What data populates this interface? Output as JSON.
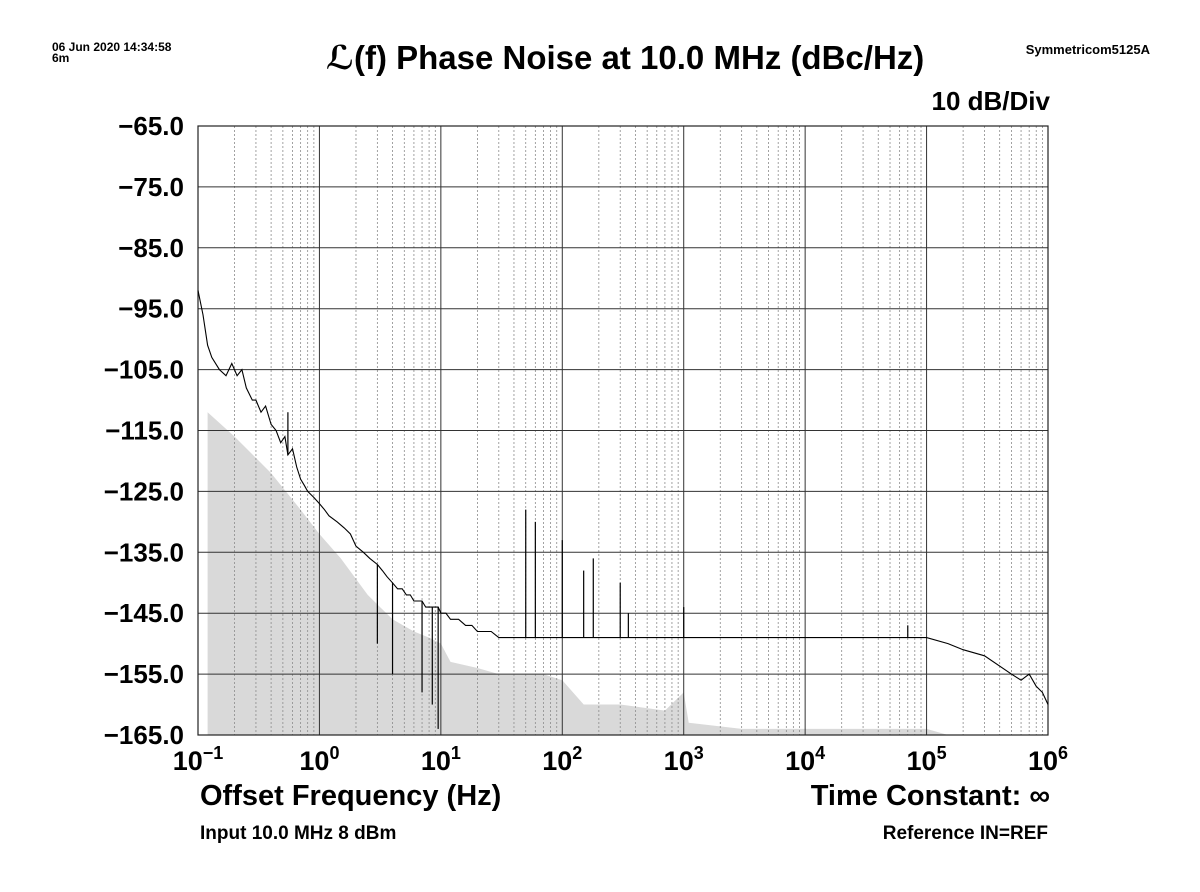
{
  "header": {
    "timestamp_line1": "06 Jun 2020 14:34:58",
    "timestamp_line2": "6m",
    "instrument": "Symmetricom5125A",
    "title": "ℒ(f) Phase Noise at 10.0 MHz (dBc/Hz)",
    "scale_label": "10 dB/Div"
  },
  "footer": {
    "x_axis_label": "Offset Frequency (Hz)",
    "time_constant": "Time Constant: ∞",
    "input": "Input 10.0 MHz 8 dBm",
    "reference": "Reference IN=REF"
  },
  "chart_data": {
    "type": "line",
    "title": "ℒ(f) Phase Noise at 10.0 MHz (dBc/Hz)",
    "xlabel": "Offset Frequency (Hz)",
    "ylabel": "",
    "x_scale": "log",
    "xlim": [
      0.1,
      1000000
    ],
    "ylim": [
      -165,
      -65
    ],
    "grid": true,
    "y_tick_labels": [
      "−65.0",
      "−75.0",
      "−85.0",
      "−95.0",
      "−105.0",
      "−115.0",
      "−125.0",
      "−135.0",
      "−145.0",
      "−155.0",
      "−165.0"
    ],
    "x_tick_labels": [
      {
        "base": "10",
        "exp": "−1"
      },
      {
        "base": "10",
        "exp": "0"
      },
      {
        "base": "10",
        "exp": "1"
      },
      {
        "base": "10",
        "exp": "2"
      },
      {
        "base": "10",
        "exp": "3"
      },
      {
        "base": "10",
        "exp": "4"
      },
      {
        "base": "10",
        "exp": "5"
      },
      {
        "base": "10",
        "exp": "6"
      }
    ],
    "colors": {
      "trace": "#000000",
      "floor_fill": "#d9d9d9",
      "grid_major": "#333333",
      "grid_minor": "#8c8c8c"
    },
    "series": [
      {
        "role": "phase-noise-trace",
        "x": [
          0.1,
          0.11,
          0.12,
          0.13,
          0.15,
          0.17,
          0.19,
          0.21,
          0.23,
          0.25,
          0.28,
          0.3,
          0.33,
          0.36,
          0.4,
          0.44,
          0.48,
          0.52,
          0.55,
          0.6,
          0.65,
          0.7,
          0.75,
          0.8,
          0.9,
          1.0,
          1.1,
          1.2,
          1.4,
          1.6,
          1.8,
          2.0,
          2.3,
          2.6,
          3.0,
          3.3,
          3.6,
          4.0,
          4.4,
          4.8,
          5.2,
          5.6,
          6.0,
          6.5,
          7.0,
          7.5,
          8.0,
          8.5,
          9.0,
          9.5,
          10,
          11,
          12,
          14,
          16,
          18,
          20,
          23,
          26,
          30,
          35,
          40,
          45,
          50,
          52,
          55,
          58,
          60,
          65,
          70,
          80,
          90,
          100,
          110,
          130,
          150,
          170,
          200,
          250,
          300,
          350,
          400,
          500,
          600,
          700,
          800,
          1000,
          1500,
          2000,
          3000,
          5000,
          7000,
          10000,
          20000,
          50000,
          70000,
          100000,
          150000,
          200000,
          300000,
          500000,
          600000,
          700000,
          800000,
          900000,
          1000000
        ],
        "y": [
          -92,
          -96,
          -101,
          -103,
          -105,
          -106,
          -104,
          -106,
          -105,
          -108,
          -110,
          -110,
          -112,
          -111,
          -114,
          -115,
          -117,
          -116,
          -119,
          -118,
          -121,
          -123,
          -124,
          -125,
          -126,
          -127,
          -128,
          -129,
          -130,
          -131,
          -132,
          -134,
          -135,
          -136,
          -137,
          -138,
          -139,
          -140,
          -141,
          -141,
          -142,
          -142,
          -143,
          -143,
          -143,
          -144,
          -144,
          -144,
          -144,
          -144,
          -145,
          -145,
          -146,
          -146,
          -147,
          -147,
          -148,
          -148,
          -148,
          -149,
          -149,
          -149,
          -149,
          -149,
          -149,
          -149,
          -149,
          -149,
          -149,
          -149,
          -149,
          -149,
          -149,
          -149,
          -149,
          -149,
          -149,
          -149,
          -149,
          -149,
          -149,
          -149,
          -149,
          -149,
          -149,
          -149,
          -149,
          -149,
          -149,
          -149,
          -149,
          -149,
          -149,
          -149,
          -149,
          -149,
          -149,
          -150,
          -151,
          -152,
          -155,
          -156,
          -155,
          -157,
          -158,
          -160
        ],
        "spikes": [
          {
            "x": 0.55,
            "y": -112
          },
          {
            "x": 3.0,
            "y": -150
          },
          {
            "x": 4.0,
            "y": -155
          },
          {
            "x": 7.0,
            "y": -158
          },
          {
            "x": 8.5,
            "y": -160
          },
          {
            "x": 9.5,
            "y": -164
          },
          {
            "x": 50,
            "y": -128
          },
          {
            "x": 60,
            "y": -130
          },
          {
            "x": 100,
            "y": -133
          },
          {
            "x": 150,
            "y": -138
          },
          {
            "x": 180,
            "y": -136
          },
          {
            "x": 300,
            "y": -140
          },
          {
            "x": 350,
            "y": -145
          },
          {
            "x": 1000,
            "y": -144
          },
          {
            "x": 70000,
            "y": -147
          }
        ]
      },
      {
        "role": "noise-floor",
        "x": [
          0.12,
          0.2,
          0.4,
          0.7,
          1.0,
          1.5,
          2.5,
          4.0,
          6.0,
          8.0,
          10,
          12,
          20,
          30,
          50,
          70,
          100,
          150,
          300,
          700,
          1000,
          1100,
          3000,
          10000,
          100000,
          150000,
          300000,
          1000000
        ],
        "y": [
          -112,
          -116,
          -122,
          -128,
          -132,
          -136,
          -142,
          -146,
          -148,
          -149,
          -150,
          -153,
          -154,
          -155,
          -155,
          -155,
          -156,
          -160,
          -160,
          -161,
          -158,
          -163,
          -164,
          -164,
          -164,
          -165,
          -165,
          -165
        ]
      }
    ]
  }
}
